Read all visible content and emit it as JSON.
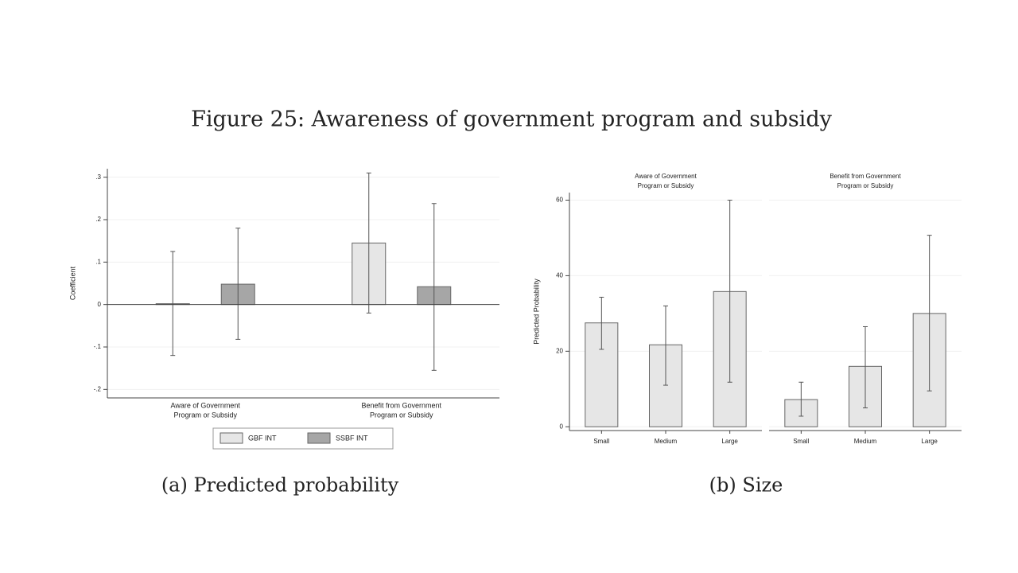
{
  "title": "Figure 25: Awareness of government program and subsidy",
  "chart_data": [
    {
      "type": "bar",
      "caption": "(a) Predicted probability",
      "y_label": "Coefficient",
      "categories": [
        [
          "Aware of Government",
          "Program or Subsidy"
        ],
        [
          "Benefit from Government",
          "Program or Subsidy"
        ]
      ],
      "series": [
        {
          "name": "GBF INT",
          "color": "#e6e6e6",
          "values": [
            0.002,
            0.145
          ],
          "ci_low": [
            -0.12,
            -0.02
          ],
          "ci_high": [
            0.125,
            0.31
          ]
        },
        {
          "name": "SSBF INT",
          "color": "#a6a6a6",
          "values": [
            0.048,
            0.042
          ],
          "ci_low": [
            -0.082,
            -0.155
          ],
          "ci_high": [
            0.18,
            0.238
          ]
        }
      ],
      "ylim": [
        -0.22,
        0.32
      ],
      "yticks": [
        {
          "value": 0.3,
          "label": ".3"
        },
        {
          "value": 0.2,
          "label": ".2"
        },
        {
          "value": 0.1,
          "label": ".1"
        },
        0,
        {
          "value": -0.1,
          "label": "-.1"
        },
        {
          "value": -0.2,
          "label": "-.2"
        }
      ],
      "grid": true,
      "legend": "bottom"
    },
    {
      "type": "bar",
      "caption": "(b) Size",
      "y_label": "Predicted Probability",
      "categories": [
        "Small",
        "Medium",
        "Large"
      ],
      "panels": [
        {
          "title": [
            "Aware of Government",
            "Program or Subsidy"
          ],
          "color": "#e6e6e6",
          "values": [
            27.5,
            21.7,
            35.8
          ],
          "ci_low": [
            20.5,
            11,
            11.8
          ],
          "ci_high": [
            34.3,
            32,
            60
          ]
        },
        {
          "title": [
            "Benefit from Government",
            "Program or Subsidy"
          ],
          "color": "#e6e6e6",
          "values": [
            7.2,
            16,
            30
          ],
          "ci_low": [
            2.8,
            5,
            9.5
          ],
          "ci_high": [
            11.8,
            26.5,
            50.7
          ]
        }
      ],
      "ylim": [
        -1,
        62
      ],
      "yticks": [
        0,
        20,
        40,
        60
      ],
      "grid": true
    }
  ]
}
